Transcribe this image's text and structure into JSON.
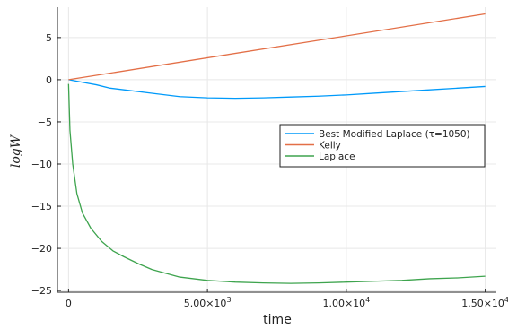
{
  "chart_data": {
    "type": "line",
    "xlabel": "time",
    "ylabel": "logW",
    "xlim": [
      -400,
      15400
    ],
    "ylim": [
      -25.2,
      8.6
    ],
    "grid": true,
    "legend_position": "right-center",
    "x_ticks": [
      {
        "value": 0,
        "label": "0"
      },
      {
        "value": 5000,
        "mantissa": "5.00×10",
        "exp": "3"
      },
      {
        "value": 10000,
        "mantissa": "1.00×10",
        "exp": "4"
      },
      {
        "value": 15000,
        "mantissa": "1.50×10",
        "exp": "4"
      }
    ],
    "y_ticks": [
      {
        "value": 5,
        "label": "5"
      },
      {
        "value": 0,
        "label": "0"
      },
      {
        "value": -5,
        "label": "−5"
      },
      {
        "value": -10,
        "label": "−10"
      },
      {
        "value": -15,
        "label": "−15"
      },
      {
        "value": -20,
        "label": "−20"
      },
      {
        "value": -25,
        "label": "−25"
      }
    ],
    "series": [
      {
        "name": "Best Modified Laplace (τ=1050)",
        "color": "#009AFA",
        "x": [
          0,
          500,
          1000,
          1500,
          2000,
          3000,
          4000,
          5000,
          6000,
          7000,
          8000,
          9000,
          10000,
          11000,
          12000,
          13000,
          14000,
          15000
        ],
        "y": [
          0,
          -0.3,
          -0.6,
          -1.0,
          -1.2,
          -1.6,
          -2.0,
          -2.15,
          -2.2,
          -2.15,
          -2.05,
          -1.95,
          -1.8,
          -1.6,
          -1.4,
          -1.2,
          -1.0,
          -0.8
        ]
      },
      {
        "name": "Kelly",
        "color": "#E36F47",
        "x": [
          0,
          15000
        ],
        "y": [
          0,
          7.8
        ]
      },
      {
        "name": "Laplace",
        "color": "#3EA44E",
        "x": [
          0,
          50,
          150,
          300,
          500,
          800,
          1200,
          1600,
          2000,
          2500,
          3000,
          4000,
          5000,
          6000,
          7000,
          8000,
          9000,
          10000,
          11000,
          12000,
          13000,
          14000,
          15000
        ],
        "y": [
          -0.5,
          -6,
          -10,
          -13.5,
          -15.8,
          -17.6,
          -19.2,
          -20.3,
          -21.0,
          -21.8,
          -22.5,
          -23.4,
          -23.8,
          -24.0,
          -24.1,
          -24.15,
          -24.1,
          -24.0,
          -23.9,
          -23.8,
          -23.6,
          -23.5,
          -23.3
        ]
      }
    ]
  }
}
